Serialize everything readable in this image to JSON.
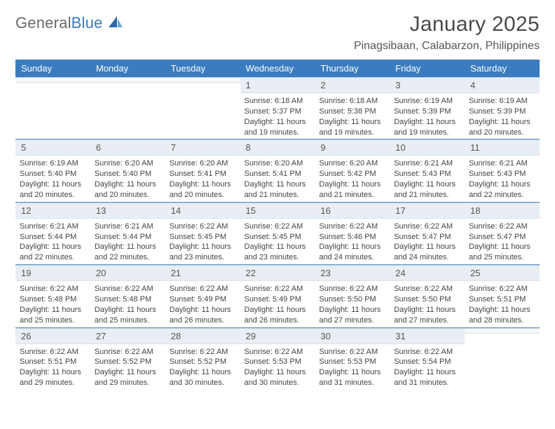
{
  "brand": {
    "name_gray": "General",
    "name_blue": "Blue"
  },
  "header": {
    "month_title": "January 2025",
    "location": "Pinagsibaan, Calabarzon, Philippines"
  },
  "daynames": [
    "Sunday",
    "Monday",
    "Tuesday",
    "Wednesday",
    "Thursday",
    "Friday",
    "Saturday"
  ],
  "colors": {
    "header_bg": "#3a7cbf",
    "header_text": "#ffffff",
    "daynum_bg": "#e8eef3",
    "text": "#444444"
  },
  "weeks": [
    [
      {
        "day": "",
        "lines": []
      },
      {
        "day": "",
        "lines": []
      },
      {
        "day": "",
        "lines": []
      },
      {
        "day": "1",
        "lines": [
          "Sunrise: 6:18 AM",
          "Sunset: 5:37 PM",
          "Daylight: 11 hours",
          "and 19 minutes."
        ]
      },
      {
        "day": "2",
        "lines": [
          "Sunrise: 6:18 AM",
          "Sunset: 5:38 PM",
          "Daylight: 11 hours",
          "and 19 minutes."
        ]
      },
      {
        "day": "3",
        "lines": [
          "Sunrise: 6:19 AM",
          "Sunset: 5:39 PM",
          "Daylight: 11 hours",
          "and 19 minutes."
        ]
      },
      {
        "day": "4",
        "lines": [
          "Sunrise: 6:19 AM",
          "Sunset: 5:39 PM",
          "Daylight: 11 hours",
          "and 20 minutes."
        ]
      }
    ],
    [
      {
        "day": "5",
        "lines": [
          "Sunrise: 6:19 AM",
          "Sunset: 5:40 PM",
          "Daylight: 11 hours",
          "and 20 minutes."
        ]
      },
      {
        "day": "6",
        "lines": [
          "Sunrise: 6:20 AM",
          "Sunset: 5:40 PM",
          "Daylight: 11 hours",
          "and 20 minutes."
        ]
      },
      {
        "day": "7",
        "lines": [
          "Sunrise: 6:20 AM",
          "Sunset: 5:41 PM",
          "Daylight: 11 hours",
          "and 20 minutes."
        ]
      },
      {
        "day": "8",
        "lines": [
          "Sunrise: 6:20 AM",
          "Sunset: 5:41 PM",
          "Daylight: 11 hours",
          "and 21 minutes."
        ]
      },
      {
        "day": "9",
        "lines": [
          "Sunrise: 6:20 AM",
          "Sunset: 5:42 PM",
          "Daylight: 11 hours",
          "and 21 minutes."
        ]
      },
      {
        "day": "10",
        "lines": [
          "Sunrise: 6:21 AM",
          "Sunset: 5:43 PM",
          "Daylight: 11 hours",
          "and 21 minutes."
        ]
      },
      {
        "day": "11",
        "lines": [
          "Sunrise: 6:21 AM",
          "Sunset: 5:43 PM",
          "Daylight: 11 hours",
          "and 22 minutes."
        ]
      }
    ],
    [
      {
        "day": "12",
        "lines": [
          "Sunrise: 6:21 AM",
          "Sunset: 5:44 PM",
          "Daylight: 11 hours",
          "and 22 minutes."
        ]
      },
      {
        "day": "13",
        "lines": [
          "Sunrise: 6:21 AM",
          "Sunset: 5:44 PM",
          "Daylight: 11 hours",
          "and 22 minutes."
        ]
      },
      {
        "day": "14",
        "lines": [
          "Sunrise: 6:22 AM",
          "Sunset: 5:45 PM",
          "Daylight: 11 hours",
          "and 23 minutes."
        ]
      },
      {
        "day": "15",
        "lines": [
          "Sunrise: 6:22 AM",
          "Sunset: 5:45 PM",
          "Daylight: 11 hours",
          "and 23 minutes."
        ]
      },
      {
        "day": "16",
        "lines": [
          "Sunrise: 6:22 AM",
          "Sunset: 5:46 PM",
          "Daylight: 11 hours",
          "and 24 minutes."
        ]
      },
      {
        "day": "17",
        "lines": [
          "Sunrise: 6:22 AM",
          "Sunset: 5:47 PM",
          "Daylight: 11 hours",
          "and 24 minutes."
        ]
      },
      {
        "day": "18",
        "lines": [
          "Sunrise: 6:22 AM",
          "Sunset: 5:47 PM",
          "Daylight: 11 hours",
          "and 25 minutes."
        ]
      }
    ],
    [
      {
        "day": "19",
        "lines": [
          "Sunrise: 6:22 AM",
          "Sunset: 5:48 PM",
          "Daylight: 11 hours",
          "and 25 minutes."
        ]
      },
      {
        "day": "20",
        "lines": [
          "Sunrise: 6:22 AM",
          "Sunset: 5:48 PM",
          "Daylight: 11 hours",
          "and 25 minutes."
        ]
      },
      {
        "day": "21",
        "lines": [
          "Sunrise: 6:22 AM",
          "Sunset: 5:49 PM",
          "Daylight: 11 hours",
          "and 26 minutes."
        ]
      },
      {
        "day": "22",
        "lines": [
          "Sunrise: 6:22 AM",
          "Sunset: 5:49 PM",
          "Daylight: 11 hours",
          "and 26 minutes."
        ]
      },
      {
        "day": "23",
        "lines": [
          "Sunrise: 6:22 AM",
          "Sunset: 5:50 PM",
          "Daylight: 11 hours",
          "and 27 minutes."
        ]
      },
      {
        "day": "24",
        "lines": [
          "Sunrise: 6:22 AM",
          "Sunset: 5:50 PM",
          "Daylight: 11 hours",
          "and 27 minutes."
        ]
      },
      {
        "day": "25",
        "lines": [
          "Sunrise: 6:22 AM",
          "Sunset: 5:51 PM",
          "Daylight: 11 hours",
          "and 28 minutes."
        ]
      }
    ],
    [
      {
        "day": "26",
        "lines": [
          "Sunrise: 6:22 AM",
          "Sunset: 5:51 PM",
          "Daylight: 11 hours",
          "and 29 minutes."
        ]
      },
      {
        "day": "27",
        "lines": [
          "Sunrise: 6:22 AM",
          "Sunset: 5:52 PM",
          "Daylight: 11 hours",
          "and 29 minutes."
        ]
      },
      {
        "day": "28",
        "lines": [
          "Sunrise: 6:22 AM",
          "Sunset: 5:52 PM",
          "Daylight: 11 hours",
          "and 30 minutes."
        ]
      },
      {
        "day": "29",
        "lines": [
          "Sunrise: 6:22 AM",
          "Sunset: 5:53 PM",
          "Daylight: 11 hours",
          "and 30 minutes."
        ]
      },
      {
        "day": "30",
        "lines": [
          "Sunrise: 6:22 AM",
          "Sunset: 5:53 PM",
          "Daylight: 11 hours",
          "and 31 minutes."
        ]
      },
      {
        "day": "31",
        "lines": [
          "Sunrise: 6:22 AM",
          "Sunset: 5:54 PM",
          "Daylight: 11 hours",
          "and 31 minutes."
        ]
      },
      {
        "day": "",
        "lines": []
      }
    ]
  ]
}
